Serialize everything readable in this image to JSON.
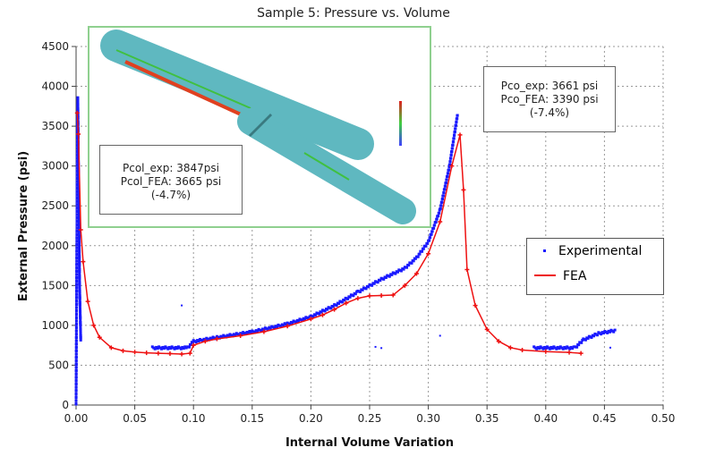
{
  "chart_data": {
    "type": "scatter",
    "title": "Sample 5: Pressure vs. Volume",
    "xlabel": "Internal Volume Variation",
    "ylabel": "External Pressure (psi)",
    "xlim": [
      0,
      0.5
    ],
    "ylim": [
      0,
      4500
    ],
    "xticks": [
      "0.00",
      "0.05",
      "0.10",
      "0.15",
      "0.20",
      "0.25",
      "0.30",
      "0.35",
      "0.40",
      "0.45",
      "0.50"
    ],
    "yticks": [
      "0",
      "500",
      "1000",
      "1500",
      "2000",
      "2500",
      "3000",
      "3500",
      "4000",
      "4500"
    ],
    "grid": true,
    "legend_position": "right",
    "series": [
      {
        "name": "Experimental",
        "color": "#1a1aff",
        "style": "dots",
        "segments": [
          [
            [
              0,
              0
            ],
            [
              0.0005,
              1500
            ],
            [
              0.001,
              3000
            ],
            [
              0.0015,
              3847
            ],
            [
              0.002,
              3000
            ],
            [
              0.003,
              1500
            ],
            [
              0.004,
              800
            ]
          ],
          [
            [
              0.065,
              720
            ],
            [
              0.095,
              720
            ],
            [
              0.1,
              800
            ],
            [
              0.12,
              850
            ],
            [
              0.15,
              920
            ],
            [
              0.18,
              1020
            ],
            [
              0.2,
              1110
            ],
            [
              0.22,
              1250
            ],
            [
              0.24,
              1420
            ],
            [
              0.26,
              1580
            ],
            [
              0.28,
              1720
            ],
            [
              0.29,
              1850
            ],
            [
              0.3,
              2050
            ],
            [
              0.31,
              2450
            ],
            [
              0.318,
              3000
            ],
            [
              0.325,
              3661
            ]
          ],
          [
            [
              0.39,
              720
            ],
            [
              0.425,
              720
            ],
            [
              0.432,
              820
            ],
            [
              0.445,
              900
            ],
            [
              0.46,
              940
            ]
          ]
        ],
        "outliers": [
          [
            0.09,
            1250
          ],
          [
            0.255,
            730
          ],
          [
            0.26,
            715
          ],
          [
            0.31,
            870
          ],
          [
            0.455,
            720
          ]
        ]
      },
      {
        "name": "FEA",
        "color": "#ee1111",
        "style": "line-markers",
        "points": [
          [
            0.001,
            3665
          ],
          [
            0.002,
            3400
          ],
          [
            0.004,
            2200
          ],
          [
            0.006,
            1800
          ],
          [
            0.01,
            1300
          ],
          [
            0.015,
            1000
          ],
          [
            0.02,
            850
          ],
          [
            0.03,
            720
          ],
          [
            0.04,
            680
          ],
          [
            0.05,
            665
          ],
          [
            0.06,
            655
          ],
          [
            0.07,
            650
          ],
          [
            0.08,
            645
          ],
          [
            0.09,
            640
          ],
          [
            0.097,
            650
          ],
          [
            0.1,
            750
          ],
          [
            0.11,
            800
          ],
          [
            0.12,
            830
          ],
          [
            0.14,
            870
          ],
          [
            0.16,
            920
          ],
          [
            0.18,
            990
          ],
          [
            0.2,
            1080
          ],
          [
            0.21,
            1130
          ],
          [
            0.22,
            1200
          ],
          [
            0.23,
            1280
          ],
          [
            0.24,
            1340
          ],
          [
            0.25,
            1370
          ],
          [
            0.26,
            1375
          ],
          [
            0.27,
            1380
          ],
          [
            0.28,
            1500
          ],
          [
            0.29,
            1650
          ],
          [
            0.3,
            1900
          ],
          [
            0.31,
            2300
          ],
          [
            0.32,
            3000
          ],
          [
            0.327,
            3390
          ],
          [
            0.33,
            2700
          ],
          [
            0.333,
            1700
          ],
          [
            0.34,
            1250
          ],
          [
            0.35,
            950
          ],
          [
            0.36,
            800
          ],
          [
            0.37,
            720
          ],
          [
            0.38,
            690
          ],
          [
            0.4,
            670
          ],
          [
            0.42,
            660
          ],
          [
            0.43,
            650
          ]
        ]
      }
    ],
    "annotations": {
      "collapse": [
        "Pcol_exp:  3847psi",
        "Pcol_FEA:  3665 psi",
        "(-4.7%)"
      ],
      "propagation": [
        "Pco_exp:  3661 psi",
        "Pco_FEA: 3390 psi",
        "(-7.4%)"
      ]
    }
  }
}
